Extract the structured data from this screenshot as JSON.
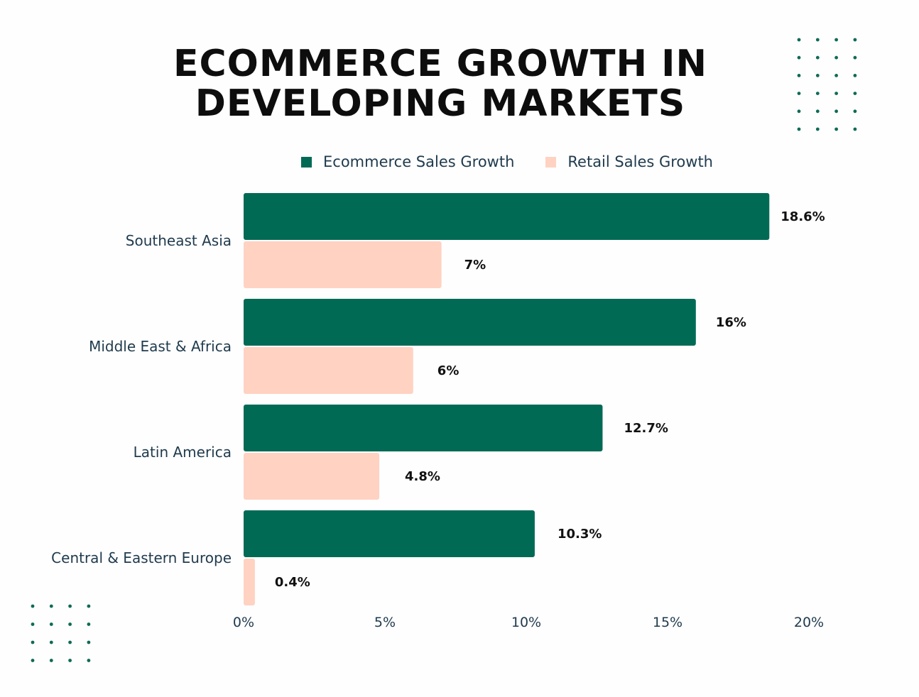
{
  "chart_data": {
    "type": "bar",
    "orientation": "horizontal",
    "title_lines": [
      "ECOMMERCE GROWTH IN",
      "DEVELOPING MARKETS"
    ],
    "categories": [
      "Southeast Asia",
      "Middle East & Africa",
      "Latin America",
      "Central & Eastern Europe"
    ],
    "series": [
      {
        "name": "Ecommerce Sales Growth",
        "color": "#006a55",
        "values": [
          18.6,
          16,
          12.7,
          10.3
        ],
        "labels": [
          "18.6%",
          "16%",
          "12.7%",
          "10.3%"
        ]
      },
      {
        "name": "Retail Sales Growth",
        "color": "#ffd2c2",
        "values": [
          7,
          6,
          4.8,
          0.4
        ],
        "labels": [
          "7%",
          "6%",
          "4.8%",
          "0.4%"
        ]
      }
    ],
    "xlim": [
      0,
      20
    ],
    "xticks": [
      0,
      5,
      10,
      15,
      20
    ],
    "xtick_labels": [
      "0%",
      "5%",
      "10%",
      "15%",
      "20%"
    ],
    "legend_position": "top",
    "grid": false
  },
  "decor": {
    "dot_color": "#0e6b55"
  }
}
